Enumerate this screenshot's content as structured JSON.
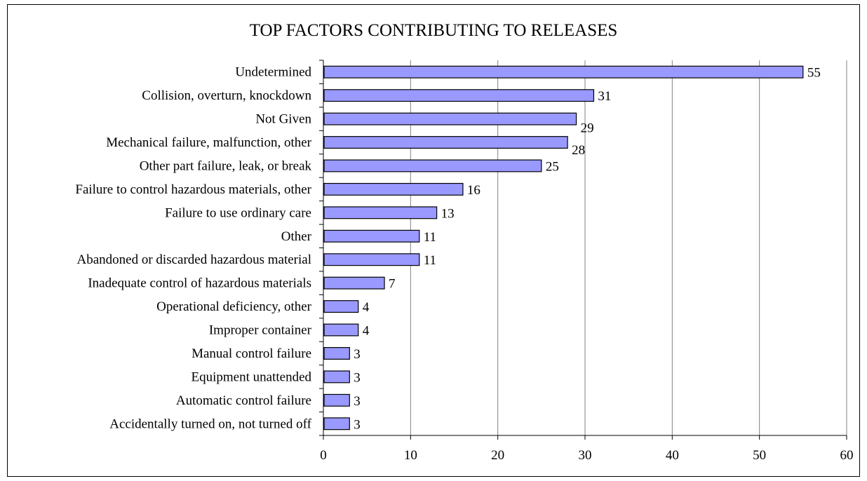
{
  "chart_data": {
    "type": "bar",
    "orientation": "horizontal",
    "title": "TOP FACTORS CONTRIBUTING TO RELEASES",
    "xlabel": "",
    "ylabel": "",
    "xlim": [
      0,
      60
    ],
    "x_ticks": [
      "0",
      "10",
      "20",
      "30",
      "40",
      "50",
      "60"
    ],
    "grid": "vertical major gridlines",
    "legend": "none",
    "bar_color": "#9999ff",
    "bar_edge_color": "#000000",
    "categories": [
      "Undetermined",
      "Collision, overturn, knockdown",
      "Not Given",
      "Mechanical failure, malfunction, other",
      "Other part failure, leak, or break",
      "Failure to control hazardous materials, other",
      "Failure to use ordinary care",
      "Other",
      "Abandoned or discarded hazardous material",
      "Inadequate control of hazardous materials",
      "Operational deficiency, other",
      "Improper container",
      "Manual control failure",
      "Equipment unattended",
      "Automatic control failure",
      "Accidentally turned on, not turned off"
    ],
    "values": [
      55,
      31,
      29,
      28,
      25,
      16,
      13,
      11,
      11,
      7,
      4,
      4,
      3,
      3,
      3,
      3
    ],
    "value_labels": [
      "55",
      "31",
      "29",
      "28",
      "25",
      "16",
      "13",
      "11",
      "11",
      "7",
      "4",
      "4",
      "3",
      "3",
      "3",
      "3"
    ]
  }
}
